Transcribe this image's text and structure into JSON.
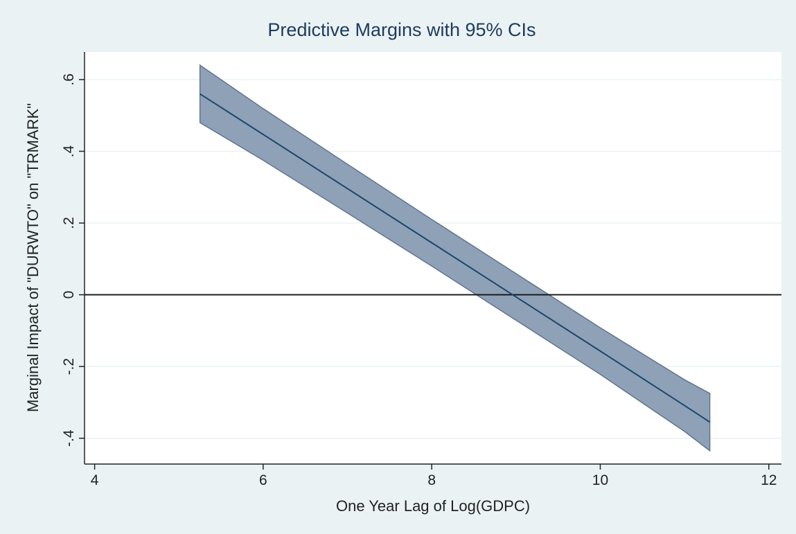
{
  "chart_data": {
    "type": "line_ci",
    "title": "Predictive Margins with 95% CIs",
    "x_label": "One Year Lag of Log(GDPC)",
    "y_label": "Marginal Impact of \"DURWTO\" on \"TRMARK\"",
    "x": [
      5.25,
      6,
      7,
      8,
      9,
      10,
      11,
      11.3
    ],
    "values": [
      0.56,
      0.447,
      0.296,
      0.145,
      -0.006,
      -0.157,
      -0.309,
      -0.355
    ],
    "ci_lower": [
      0.48,
      0.375,
      0.228,
      0.08,
      -0.071,
      -0.222,
      -0.381,
      -0.435
    ],
    "ci_upper": [
      0.64,
      0.519,
      0.364,
      0.21,
      0.059,
      -0.092,
      -0.237,
      -0.275
    ],
    "line_color": "#1a476f",
    "band_color": "#8fa1b6",
    "band_edge_color": "#5e7590",
    "reference_line": 0,
    "xlim": [
      3.88,
      12.15
    ],
    "xticks": [
      4,
      6,
      8,
      10,
      12
    ],
    "ylim": [
      -0.472,
      0.677
    ],
    "yticks": [
      {
        "value": -0.4,
        "label": "-.4"
      },
      {
        "value": -0.2,
        "label": "-.2"
      },
      0,
      {
        "value": 0.2,
        "label": ".2"
      },
      {
        "value": 0.4,
        "label": ".4"
      },
      {
        "value": 0.6,
        "label": ".6"
      }
    ],
    "grid": true
  }
}
